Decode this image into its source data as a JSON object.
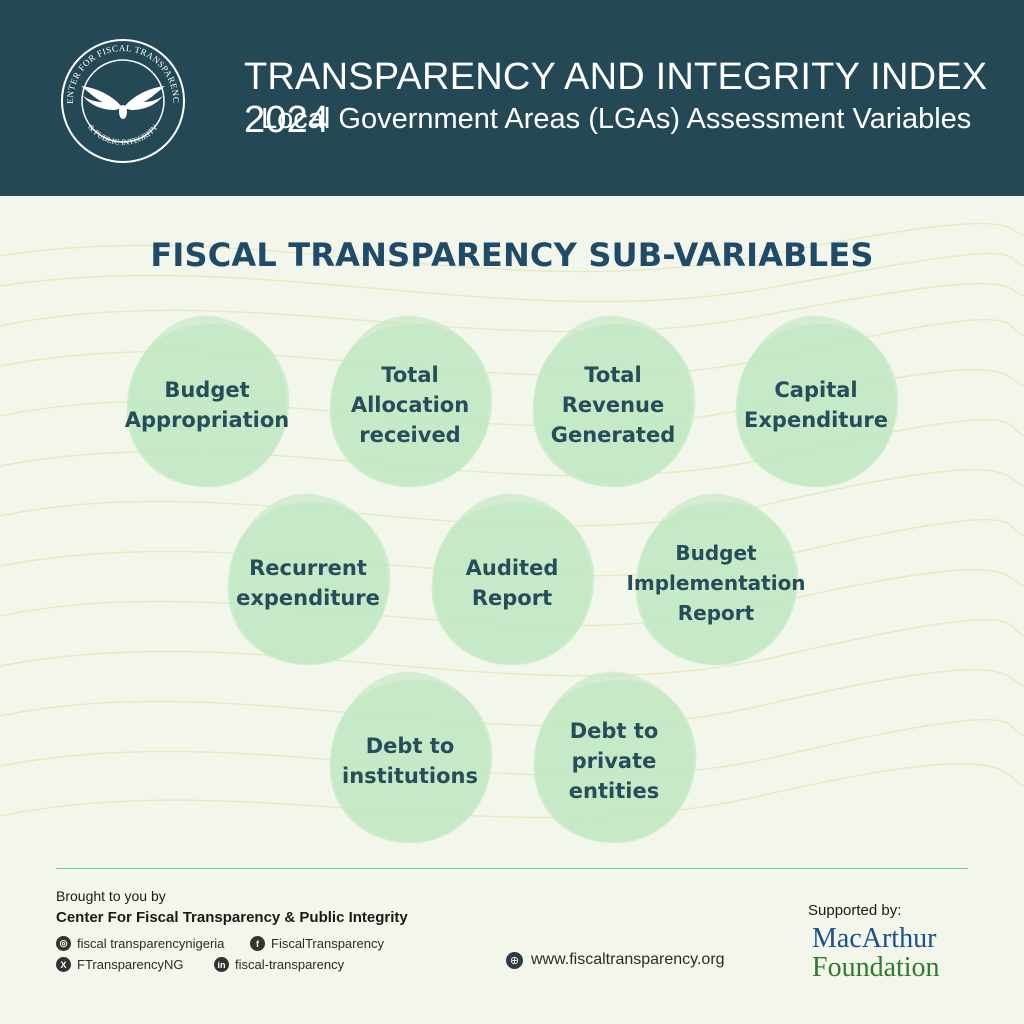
{
  "header": {
    "logo_text_top": "CENTER FOR FISCAL TRANSPARENCY",
    "logo_text_bottom": "& PUBLIC INTEGRITY",
    "title": "TRANSPARENCY AND INTEGRITY INDEX 2024",
    "subtitle": "Local Government Areas (LGAs) Assessment Variables",
    "background_color": "#244856"
  },
  "section_title": "FISCAL TRANSPARENCY SUB-VARIABLES",
  "sub_variables": [
    "Budget\nAppropriation",
    "Total\nAllocation\nreceived",
    "Total\nRevenue\nGenerated",
    "Capital\nExpenditure",
    "Recurrent\nexpenditure",
    "Audited\nReport",
    "Budget\nImplementation\nReport",
    "Debt to\ninstitutions",
    "Debt to\nprivate\nentities"
  ],
  "bubble_color": "#c4ebc6",
  "footer": {
    "brought_to_you": "Brought to you by",
    "organization": "Center For Fiscal Transparency & Public Integrity",
    "instagram": "fiscal transparencynigeria",
    "facebook": "FiscalTransparency",
    "x": "FTransparencyNG",
    "linkedin": "fiscal-transparency",
    "website": "www.fiscaltransparency.org",
    "supported_by": "Supported by:",
    "sponsor_line1": "MacArthur",
    "sponsor_line2": "Foundation",
    "icons": [
      "instagram-icon",
      "facebook-icon",
      "x-icon",
      "linkedin-icon",
      "globe-icon"
    ]
  }
}
